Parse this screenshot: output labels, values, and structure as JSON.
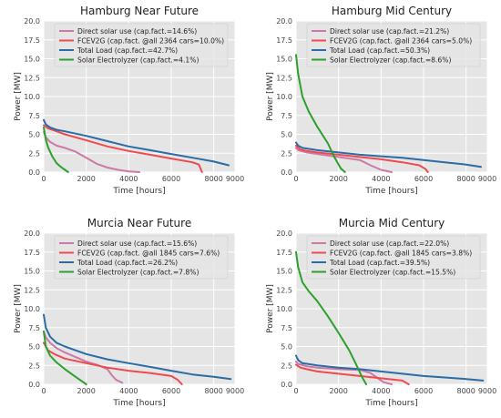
{
  "chart_data": [
    {
      "type": "line",
      "title": "Hamburg Near Future",
      "xlabel": "Time [hours]",
      "ylabel": "Power [MW]",
      "xlim": [
        0,
        9000
      ],
      "ylim": [
        0,
        20
      ],
      "xticks": [
        0,
        2000,
        4000,
        6000,
        8000,
        9000
      ],
      "yticks": [
        0.0,
        2.5,
        5.0,
        7.5,
        10.0,
        12.5,
        15.0,
        17.5,
        20.0
      ],
      "grid": true,
      "legend_position": "top-right",
      "series": [
        {
          "name": "Direct solar use (cap.fact.=14.6%)",
          "color": "#cc79a7",
          "x": [
            0,
            100,
            300,
            600,
            1000,
            1500,
            2000,
            2500,
            3000,
            3500,
            4000,
            4500
          ],
          "y": [
            5.3,
            4.6,
            4.0,
            3.5,
            3.2,
            2.7,
            1.9,
            1.1,
            0.6,
            0.3,
            0.1,
            0.0
          ]
        },
        {
          "name": "FCEV2G (cap.fact. @all 2364 cars=10.0%)",
          "color": "#f04a4f",
          "x": [
            0,
            200,
            500,
            1000,
            2000,
            3000,
            4000,
            5000,
            6000,
            7000,
            7300,
            7450
          ],
          "y": [
            6.2,
            5.8,
            5.5,
            5.0,
            4.2,
            3.4,
            2.8,
            2.3,
            1.8,
            1.3,
            1.0,
            0.0
          ]
        },
        {
          "name": "Total Load (cap.fact.=42.7%)",
          "color": "#2a6ca3",
          "x": [
            0,
            100,
            300,
            600,
            1000,
            2000,
            3000,
            4000,
            5000,
            6000,
            7000,
            8000,
            8700
          ],
          "y": [
            6.9,
            6.3,
            5.9,
            5.6,
            5.4,
            4.8,
            4.1,
            3.4,
            2.9,
            2.4,
            1.9,
            1.4,
            0.9
          ]
        },
        {
          "name": "Solar Electrolyzer (cap.fact.=4.1%)",
          "color": "#2ca02c",
          "x": [
            0,
            100,
            200,
            400,
            600,
            800,
            1000,
            1150
          ],
          "y": [
            5.9,
            4.3,
            3.3,
            2.1,
            1.2,
            0.7,
            0.3,
            0.0
          ]
        }
      ]
    },
    {
      "type": "line",
      "title": "Hamburg Mid Century",
      "xlabel": "Time [hours]",
      "ylabel": "Power [MW]",
      "xlim": [
        0,
        9000
      ],
      "ylim": [
        0,
        20
      ],
      "xticks": [
        0,
        2000,
        4000,
        6000,
        8000,
        9000
      ],
      "yticks": [
        0.0,
        2.5,
        5.0,
        7.5,
        10.0,
        12.5,
        15.0,
        17.5,
        20.0
      ],
      "grid": true,
      "legend_position": "top-right",
      "series": [
        {
          "name": "Direct solar use (cap.fact.=21.2%)",
          "color": "#cc79a7",
          "x": [
            0,
            100,
            500,
            1000,
            2000,
            3000,
            3500,
            4000,
            4500
          ],
          "y": [
            3.2,
            2.9,
            2.6,
            2.4,
            2.0,
            1.6,
            0.9,
            0.3,
            0.0
          ]
        },
        {
          "name": "FCEV2G (cap.fact. @all 2364 cars=5.0%)",
          "color": "#f04a4f",
          "x": [
            0,
            200,
            500,
            1000,
            2000,
            3000,
            4000,
            5000,
            5800,
            6100,
            6200
          ],
          "y": [
            3.5,
            3.0,
            2.8,
            2.6,
            2.3,
            2.0,
            1.7,
            1.3,
            0.9,
            0.4,
            0.0
          ]
        },
        {
          "name": "Total Load (cap.fact.=50.3%)",
          "color": "#2a6ca3",
          "x": [
            0,
            100,
            300,
            1000,
            2000,
            3000,
            4000,
            5000,
            6000,
            7000,
            8000,
            8700
          ],
          "y": [
            3.9,
            3.5,
            3.2,
            2.9,
            2.6,
            2.3,
            2.1,
            1.9,
            1.6,
            1.3,
            1.0,
            0.7
          ]
        },
        {
          "name": "Solar Electrolyzer (cap.fact.=8.6%)",
          "color": "#2ca02c",
          "x": [
            0,
            100,
            300,
            600,
            1000,
            1500,
            1800,
            2100,
            2300
          ],
          "y": [
            15.5,
            13.0,
            10.0,
            8.0,
            6.0,
            3.8,
            2.0,
            0.5,
            0.0
          ]
        }
      ]
    },
    {
      "type": "line",
      "title": "Murcia Near Future",
      "xlabel": "Time [hours]",
      "ylabel": "Power [MW]",
      "xlim": [
        0,
        9000
      ],
      "ylim": [
        0,
        20
      ],
      "xticks": [
        0,
        2000,
        4000,
        6000,
        8000,
        9000
      ],
      "yticks": [
        0.0,
        2.5,
        5.0,
        7.5,
        10.0,
        12.5,
        15.0,
        17.5,
        20.0
      ],
      "grid": true,
      "legend_position": "top-right",
      "series": [
        {
          "name": "Direct solar use (cap.fact.=15.6%)",
          "color": "#cc79a7",
          "x": [
            0,
            100,
            300,
            600,
            1000,
            1500,
            2000,
            2500,
            3000,
            3200,
            3400,
            3700
          ],
          "y": [
            7.0,
            6.2,
            5.5,
            4.8,
            4.2,
            3.6,
            3.0,
            2.6,
            2.0,
            1.2,
            0.6,
            0.2
          ]
        },
        {
          "name": "FCEV2G (cap.fact. @all 1845 cars=7.6%)",
          "color": "#f04a4f",
          "x": [
            0,
            200,
            500,
            1000,
            2000,
            3000,
            4000,
            5000,
            6000,
            6300,
            6500
          ],
          "y": [
            5.5,
            4.5,
            4.0,
            3.4,
            2.8,
            2.2,
            1.8,
            1.5,
            1.1,
            0.6,
            0.0
          ]
        },
        {
          "name": "Total Load (cap.fact.=26.2%)",
          "color": "#2a6ca3",
          "x": [
            0,
            100,
            300,
            600,
            1000,
            2000,
            3000,
            4000,
            5000,
            6000,
            7000,
            8000,
            8800
          ],
          "y": [
            9.2,
            7.5,
            6.3,
            5.5,
            5.0,
            4.0,
            3.3,
            2.8,
            2.3,
            1.8,
            1.3,
            1.0,
            0.7
          ]
        },
        {
          "name": "Solar Electrolyzer (cap.fact.=7.8%)",
          "color": "#2ca02c",
          "x": [
            0,
            100,
            300,
            600,
            1000,
            1300,
            1600,
            1800,
            2000
          ],
          "y": [
            7.0,
            5.0,
            3.8,
            2.9,
            2.0,
            1.4,
            0.8,
            0.4,
            0.0
          ]
        }
      ]
    },
    {
      "type": "line",
      "title": "Murcia Mid Century",
      "xlabel": "Time [hours]",
      "ylabel": "Power [MW]",
      "xlim": [
        0,
        9000
      ],
      "ylim": [
        0,
        20
      ],
      "xticks": [
        0,
        2000,
        4000,
        6000,
        8000,
        9000
      ],
      "yticks": [
        0.0,
        2.5,
        5.0,
        7.5,
        10.0,
        12.5,
        15.0,
        17.5,
        20.0
      ],
      "grid": true,
      "legend_position": "top-right",
      "series": [
        {
          "name": "Direct solar use (cap.fact.=22.0%)",
          "color": "#cc79a7",
          "x": [
            0,
            100,
            500,
            1000,
            2000,
            3000,
            3500,
            3800,
            4100,
            4500
          ],
          "y": [
            3.0,
            2.7,
            2.4,
            2.2,
            2.0,
            1.9,
            1.5,
            0.9,
            0.3,
            0.0
          ]
        },
        {
          "name": "FCEV2G (cap.fact. @all 1845 cars=3.8%)",
          "color": "#f04a4f",
          "x": [
            0,
            200,
            500,
            1000,
            2000,
            3000,
            4000,
            5000,
            5300
          ],
          "y": [
            2.6,
            2.2,
            2.0,
            1.7,
            1.4,
            1.1,
            0.8,
            0.5,
            0.0
          ]
        },
        {
          "name": "Total Load (cap.fact.=39.5%)",
          "color": "#2a6ca3",
          "x": [
            0,
            100,
            300,
            1000,
            2000,
            3000,
            4000,
            5000,
            6000,
            7000,
            8000,
            8800
          ],
          "y": [
            3.8,
            3.2,
            2.8,
            2.5,
            2.2,
            2.0,
            1.7,
            1.4,
            1.1,
            0.9,
            0.7,
            0.5
          ]
        },
        {
          "name": "Solar Electrolyzer (cap.fact.=15.5%)",
          "color": "#2ca02c",
          "x": [
            0,
            100,
            300,
            600,
            1000,
            1500,
            2000,
            2500,
            2800,
            3100,
            3300
          ],
          "y": [
            17.5,
            15.5,
            13.5,
            12.3,
            11.0,
            9.0,
            6.8,
            4.5,
            2.8,
            1.0,
            0.0
          ]
        }
      ]
    }
  ]
}
